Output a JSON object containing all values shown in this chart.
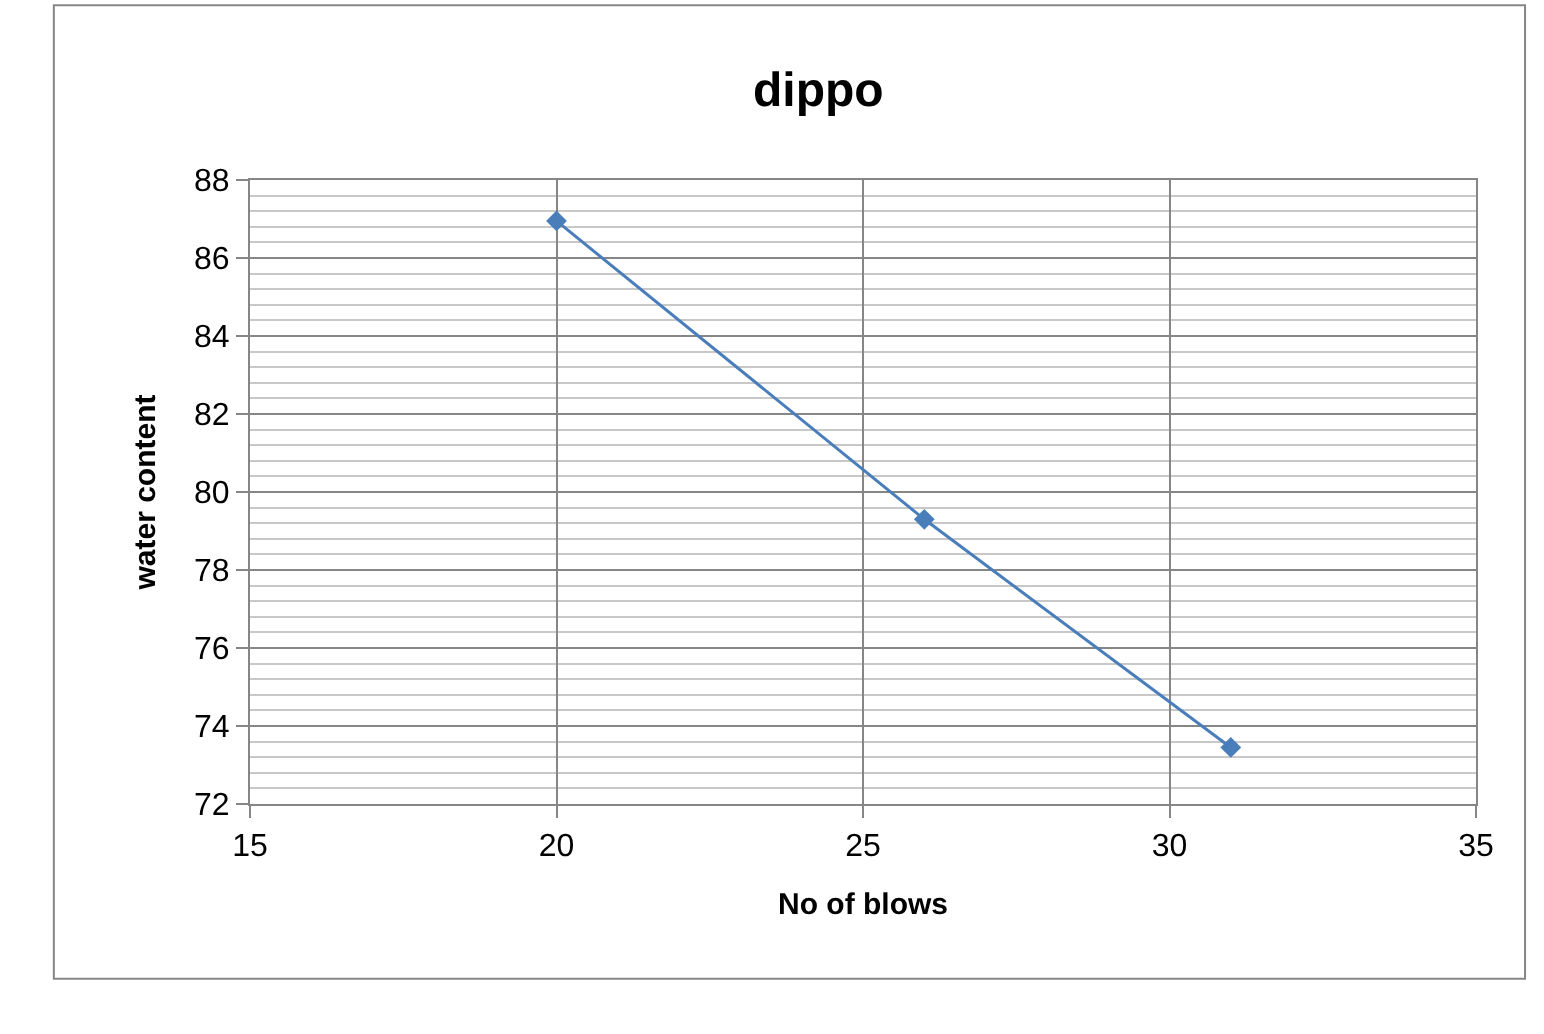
{
  "chart_data": {
    "type": "line",
    "title": "dippo",
    "xlabel": "No of blows",
    "ylabel": "water content",
    "x": [
      20,
      26,
      31
    ],
    "series": [
      {
        "color": "#4a7ebb",
        "values": [
          86.95,
          79.3,
          73.45
        ]
      }
    ],
    "xlim": [
      15,
      35
    ],
    "xticks": [
      15,
      20,
      25,
      30,
      35
    ],
    "ylim": [
      72,
      88
    ],
    "yticks": [
      72,
      74,
      76,
      78,
      80,
      82,
      84,
      86,
      88
    ],
    "grid": true,
    "marker": "diamond",
    "line_style": "solid"
  }
}
